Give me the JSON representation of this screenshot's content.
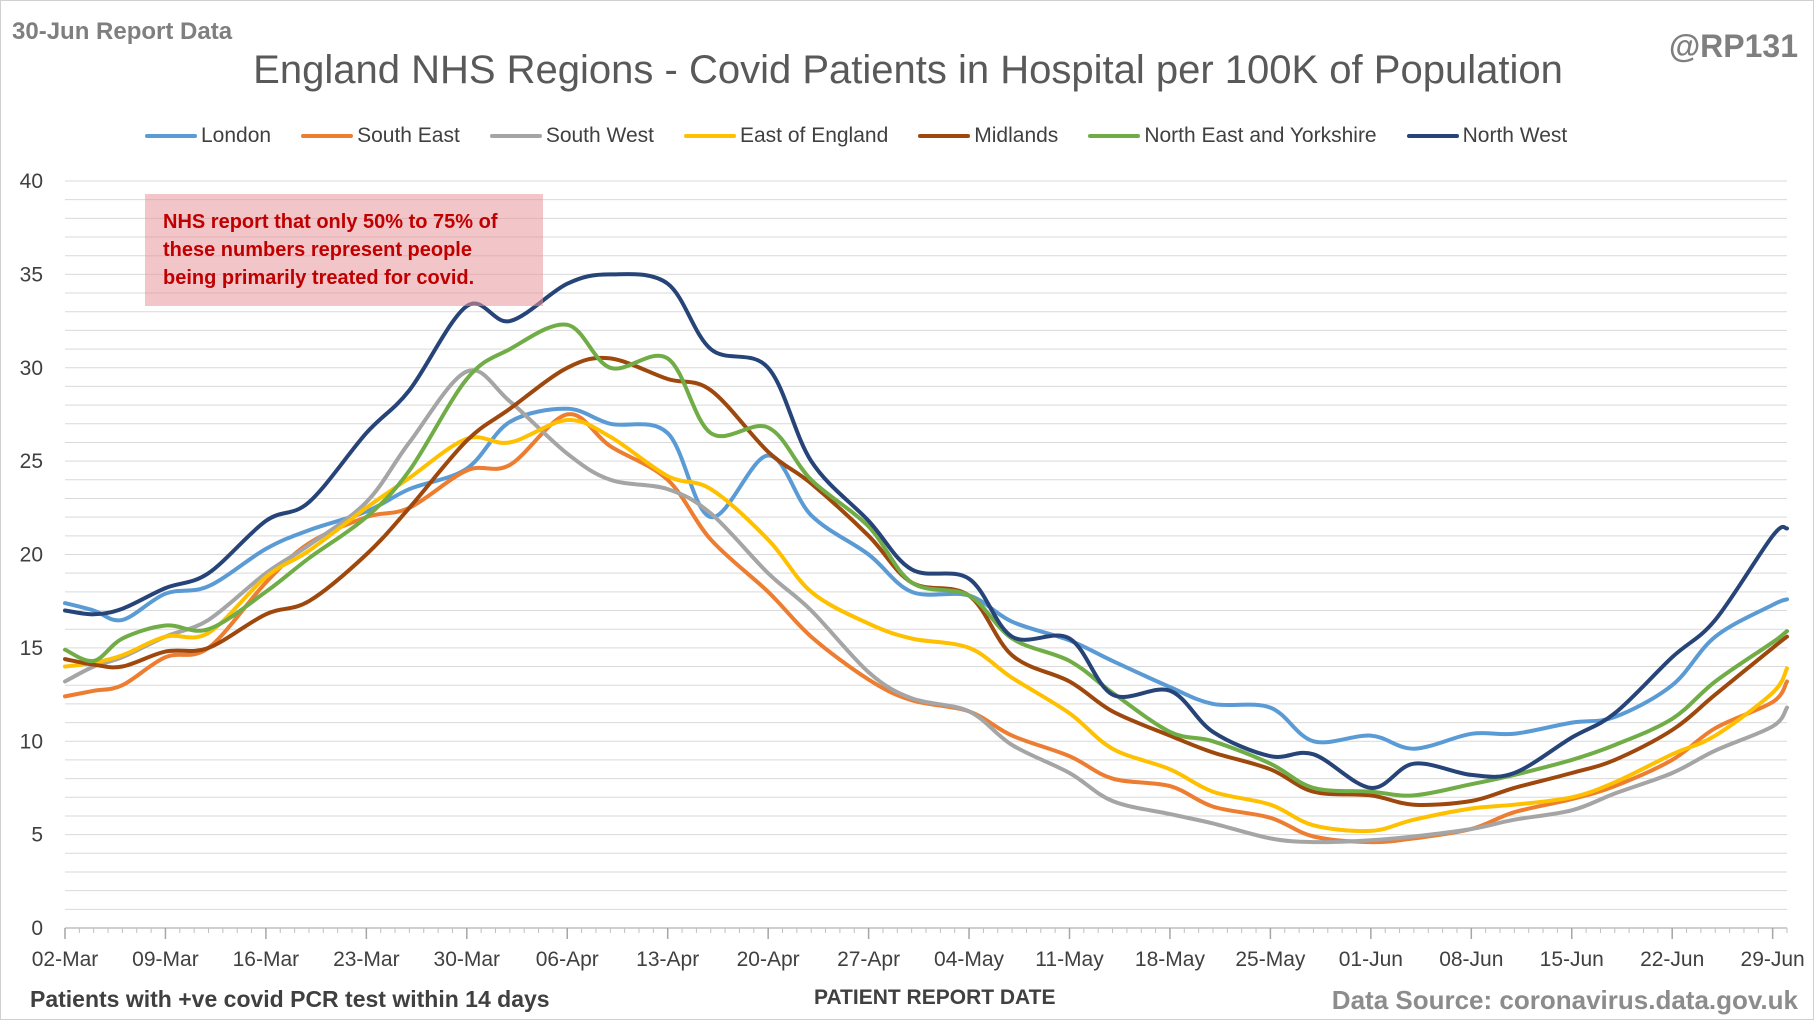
{
  "header": {
    "report_label": "30-Jun Report Data",
    "handle": "@RP131"
  },
  "annotation": {
    "lines": [
      "NHS report that only 50% to 75% of",
      "these numbers represent people",
      "being primarily treated for covid."
    ]
  },
  "footer": {
    "note": "Patients with +ve covid PCR test within 14 days",
    "source": "Data Source: coronavirus.data.gov.uk"
  },
  "chart_data": {
    "type": "line",
    "title": "England NHS Regions - Covid Patients in Hospital per 100K of Population",
    "xlabel": "PATIENT REPORT DATE",
    "ylabel": "",
    "ylim": [
      0,
      40
    ],
    "yticks": [
      0,
      5,
      10,
      15,
      20,
      25,
      30,
      35,
      40
    ],
    "grid": true,
    "legend_position": "top",
    "x_start": "02-Mar",
    "x_end": "30-Jun",
    "xtick_labels": [
      "02-Mar",
      "09-Mar",
      "16-Mar",
      "23-Mar",
      "30-Mar",
      "06-Apr",
      "13-Apr",
      "20-Apr",
      "27-Apr",
      "04-May",
      "11-May",
      "18-May",
      "25-May",
      "01-Jun",
      "08-Jun",
      "15-Jun",
      "22-Jun",
      "29-Jun"
    ],
    "xtick_days": [
      0,
      7,
      14,
      21,
      28,
      35,
      42,
      49,
      56,
      63,
      70,
      77,
      84,
      91,
      98,
      105,
      112,
      119
    ],
    "sample_days": [
      0,
      2,
      4,
      7,
      10,
      14,
      17,
      21,
      24,
      28,
      31,
      35,
      38,
      42,
      45,
      49,
      52,
      56,
      59,
      63,
      66,
      70,
      73,
      77,
      80,
      84,
      87,
      91,
      94,
      98,
      101,
      105,
      108,
      112,
      115,
      119,
      120
    ],
    "series": [
      {
        "name": "London",
        "color": "#5b9bd5",
        "values": [
          17.4,
          17.0,
          16.5,
          17.9,
          18.3,
          20.3,
          21.3,
          22.3,
          23.5,
          24.6,
          27.1,
          27.8,
          27.0,
          26.5,
          22.0,
          25.3,
          22.1,
          20.0,
          18.0,
          17.8,
          16.4,
          15.4,
          14.3,
          12.9,
          12.0,
          11.8,
          10.0,
          10.3,
          9.6,
          10.4,
          10.4,
          11.0,
          11.3,
          13.0,
          15.6,
          17.3,
          17.6
        ]
      },
      {
        "name": "South East",
        "color": "#ed7d31",
        "values": [
          12.4,
          12.7,
          13.0,
          14.5,
          15.0,
          18.5,
          20.6,
          22.0,
          22.5,
          24.5,
          24.8,
          27.5,
          25.8,
          24.0,
          20.8,
          18.0,
          15.6,
          13.3,
          12.2,
          11.6,
          10.3,
          9.2,
          8.0,
          7.6,
          6.5,
          5.9,
          4.9,
          4.6,
          4.8,
          5.3,
          6.2,
          6.9,
          7.6,
          9.0,
          10.7,
          12.1,
          13.2
        ]
      },
      {
        "name": "South West",
        "color": "#a5a5a5",
        "values": [
          13.2,
          14.0,
          14.5,
          15.6,
          16.5,
          19.0,
          20.5,
          22.8,
          26.0,
          29.8,
          28.2,
          25.4,
          24.0,
          23.5,
          22.2,
          19.0,
          17.0,
          13.7,
          12.3,
          11.6,
          9.8,
          8.3,
          6.8,
          6.1,
          5.6,
          4.8,
          4.6,
          4.7,
          4.9,
          5.3,
          5.8,
          6.3,
          7.2,
          8.3,
          9.5,
          10.8,
          11.8
        ]
      },
      {
        "name": "East of England",
        "color": "#ffc000",
        "values": [
          14.0,
          14.2,
          14.6,
          15.6,
          15.8,
          18.8,
          20.2,
          22.5,
          24.1,
          26.2,
          26.0,
          27.2,
          26.3,
          24.2,
          23.5,
          20.8,
          18.0,
          16.3,
          15.5,
          15.0,
          13.4,
          11.5,
          9.6,
          8.5,
          7.3,
          6.6,
          5.5,
          5.2,
          5.8,
          6.4,
          6.6,
          7.0,
          7.8,
          9.3,
          10.3,
          12.6,
          13.9
        ]
      },
      {
        "name": "Midlands",
        "color": "#9e480e",
        "values": [
          14.4,
          14.1,
          14.0,
          14.8,
          15.0,
          16.8,
          17.5,
          20.0,
          22.5,
          26.1,
          27.8,
          30.0,
          30.5,
          29.4,
          28.8,
          25.5,
          23.8,
          21.0,
          18.5,
          17.8,
          14.6,
          13.2,
          11.6,
          10.3,
          9.4,
          8.5,
          7.3,
          7.1,
          6.6,
          6.8,
          7.5,
          8.3,
          9.0,
          10.6,
          12.5,
          15.0,
          15.6
        ]
      },
      {
        "name": "North East and Yorkshire",
        "color": "#70ad47",
        "values": [
          14.9,
          14.3,
          15.5,
          16.2,
          16.0,
          18.0,
          19.8,
          22.0,
          24.5,
          29.4,
          31.0,
          32.3,
          30.0,
          30.5,
          26.5,
          26.8,
          24.0,
          21.5,
          18.5,
          17.8,
          15.5,
          14.3,
          12.6,
          10.5,
          10.0,
          8.8,
          7.5,
          7.3,
          7.1,
          7.7,
          8.2,
          9.0,
          9.8,
          11.2,
          13.2,
          15.3,
          15.9
        ]
      },
      {
        "name": "North West",
        "color": "#264478",
        "values": [
          17.0,
          16.8,
          17.1,
          18.2,
          19.0,
          21.8,
          22.8,
          26.5,
          28.8,
          33.3,
          32.5,
          34.5,
          35.0,
          34.5,
          31.0,
          30.0,
          25.0,
          21.8,
          19.2,
          18.7,
          15.6,
          15.5,
          12.5,
          12.7,
          10.5,
          9.2,
          9.3,
          7.5,
          8.8,
          8.2,
          8.3,
          10.2,
          11.5,
          14.5,
          16.5,
          21.0,
          21.4
        ]
      }
    ]
  }
}
